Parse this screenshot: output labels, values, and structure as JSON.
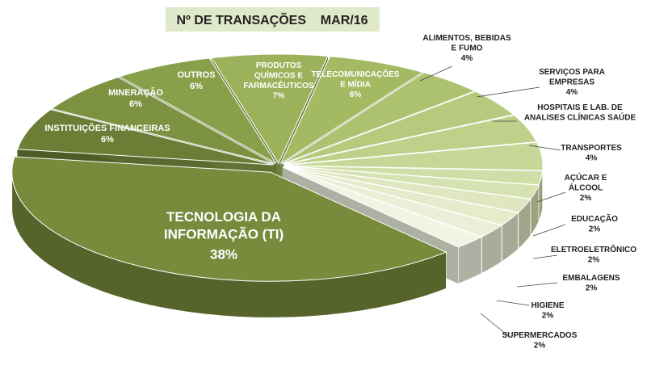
{
  "chart_data": {
    "type": "pie",
    "title": "Nº DE TRANSAÇÕES    MAR/16",
    "categories": [
      "PRODUTOS\nQUÍMICOS E\nFARMACÊUTICOS",
      "TELECOMUNICAÇÕES\nE MÍDIA",
      "ALIMENTOS, BEBIDAS\nE FUMO",
      "SERVIÇOS PARA\nEMPRESAS",
      "HOSPITAIS E LAB. DE\nANALISES CLÍNICAS SAÚDE",
      "TRANSPORTES",
      "AÇÚCAR E\nÁLCOOL",
      "EDUCAÇÃO",
      "ELETROELETRÔNICO",
      "EMBALAGENS",
      "HIGIENE",
      "SUPERMERCADOS",
      "TECNOLOGIA DA\nINFORMAÇÃO (TI)",
      "INSTITUIÇÕES FINANCEIRAS",
      "MINERAÇÃO",
      "OUTROS"
    ],
    "values": [
      7,
      6,
      4,
      4,
      4,
      4,
      2,
      2,
      2,
      2,
      2,
      2,
      38,
      6,
      6,
      6
    ],
    "value_labels": [
      "7%",
      "6%",
      "4%",
      "4%",
      null,
      "4%",
      "2%",
      "2%",
      "2%",
      "2%",
      "2%",
      "2%",
      "38%",
      "6%",
      "6%",
      "6%"
    ],
    "colors": [
      "#9bb25a",
      "#a3ba63",
      "#adc270",
      "#b6c97d",
      "#bfd08a",
      "#c8d798",
      "#d0dda6",
      "#d7e2b3",
      "#dee7c0",
      "#e4eccc",
      "#eaf0d7",
      "#f0f4e3",
      "#788a3c",
      "#6c7e35",
      "#7d9241",
      "#89a04b"
    ]
  }
}
